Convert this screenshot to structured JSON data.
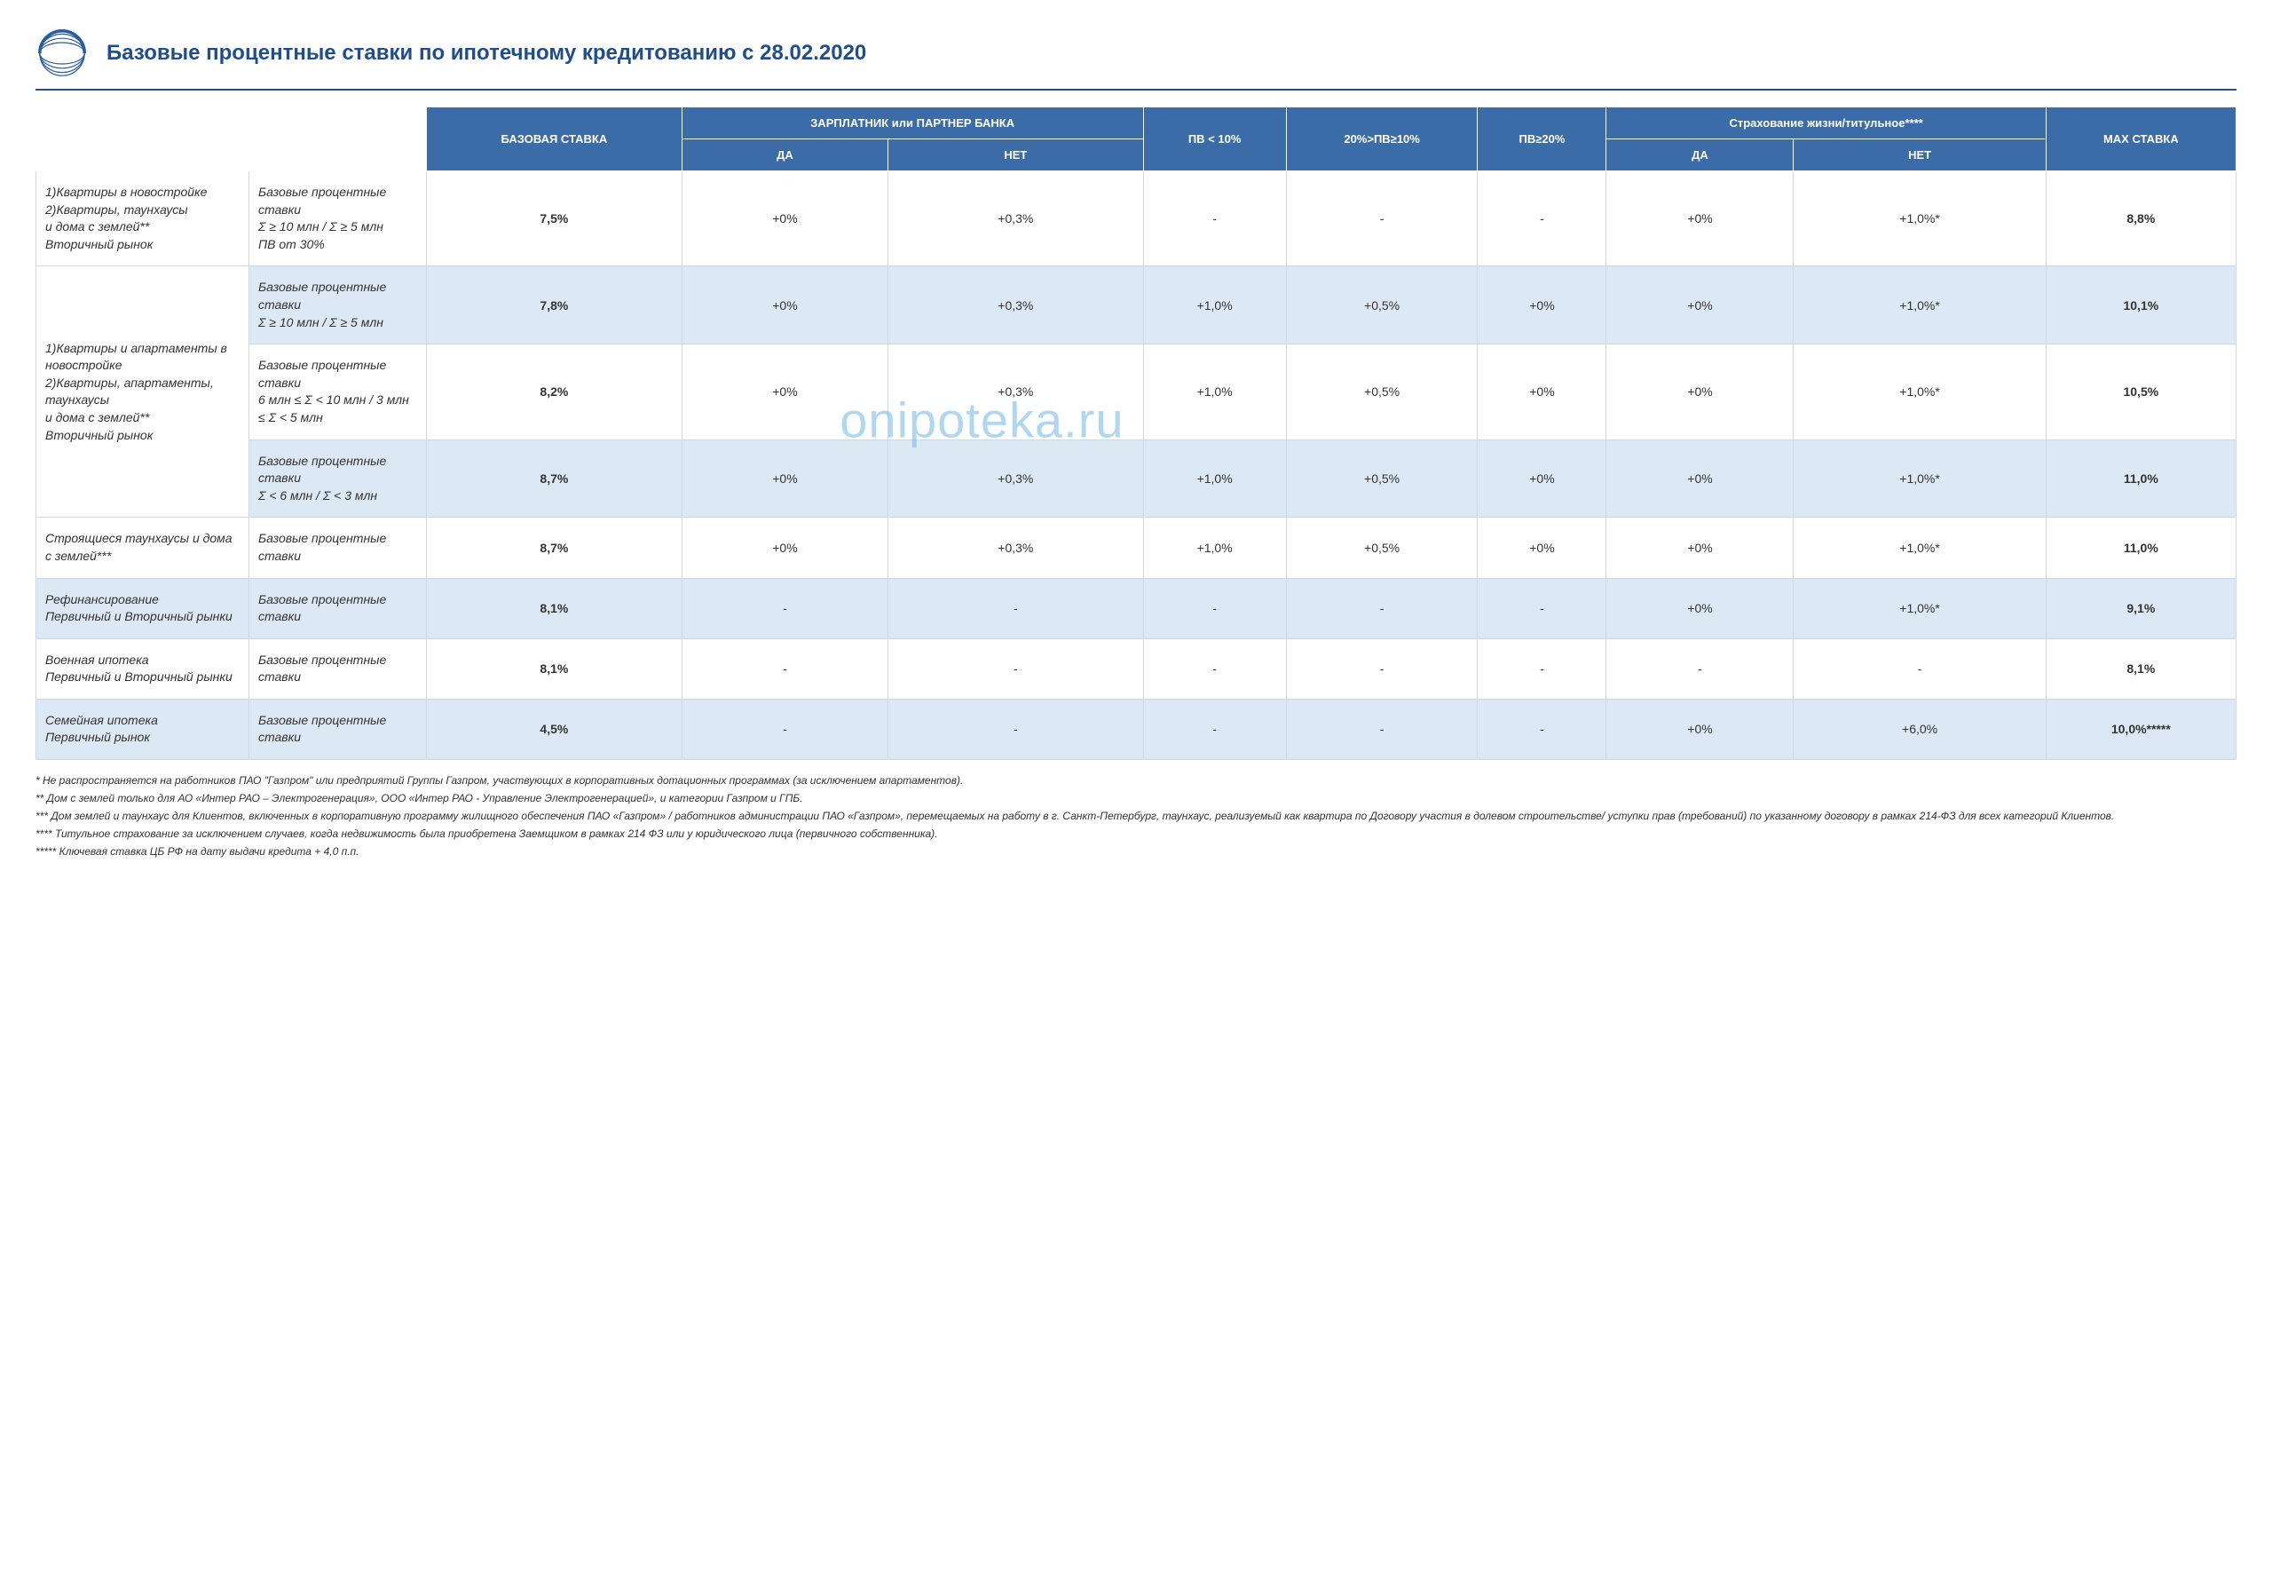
{
  "title": "Базовые процентные ставки по ипотечному кредитованию с 28.02.2020",
  "watermark": "onipoteka.ru",
  "colors": {
    "brand": "#1f4e8c",
    "header_bg": "#3b6ca8",
    "header_fg": "#ffffff",
    "row_shade": "#dce9f5",
    "row_plain": "#ffffff",
    "border": "#d0d7e2",
    "watermark": "#6fb8e8"
  },
  "headers": {
    "base": "БАЗОВАЯ СТАВКА",
    "salary": "ЗАРПЛАТНИК или ПАРТНЕР БАНКА",
    "salary_yes": "ДА",
    "salary_no": "НЕТ",
    "pv_lt10": "ПВ < 10%",
    "pv_10_20": "20%>ПВ≥10%",
    "pv_ge20": "ПВ≥20%",
    "insurance": "Страхование жизни/титульное****",
    "ins_yes": "ДА",
    "ins_no": "НЕТ",
    "max": "MAX СТАВКА"
  },
  "groups": [
    {
      "label": "1)Квартиры в новостройке\n2)Квартиры, таунхаусы\nи дома с землей**\nВторичный рынок",
      "rows": [
        {
          "desc": "Базовые процентные ставки\nΣ ≥ 10 млн / Σ ≥ 5 млн\nПВ от 30%",
          "base": "7,5%",
          "s_yes": "+0%",
          "s_no": "+0,3%",
          "pv1": "-",
          "pv2": "-",
          "pv3": "-",
          "i_yes": "+0%",
          "i_no": "+1,0%*",
          "max": "8,8%",
          "shade": false
        }
      ]
    },
    {
      "label": "1)Квартиры и апартаменты  в новостройке\n2)Квартиры, апартаменты, таунхаусы\nи дома с землей**\nВторичный рынок",
      "rows": [
        {
          "desc": "Базовые процентные ставки\nΣ ≥ 10 млн / Σ ≥ 5 млн",
          "base": "7,8%",
          "s_yes": "+0%",
          "s_no": "+0,3%",
          "pv1": "+1,0%",
          "pv2": "+0,5%",
          "pv3": "+0%",
          "i_yes": "+0%",
          "i_no": "+1,0%*",
          "max": "10,1%",
          "shade": true
        },
        {
          "desc": "Базовые процентные ставки\n6 млн ≤ Σ < 10 млн / 3 млн ≤  Σ < 5 млн",
          "base": "8,2%",
          "s_yes": "+0%",
          "s_no": "+0,3%",
          "pv1": "+1,0%",
          "pv2": "+0,5%",
          "pv3": "+0%",
          "i_yes": "+0%",
          "i_no": "+1,0%*",
          "max": "10,5%",
          "shade": false
        },
        {
          "desc": "Базовые процентные ставки\nΣ < 6 млн / Σ < 3 млн",
          "base": "8,7%",
          "s_yes": "+0%",
          "s_no": "+0,3%",
          "pv1": "+1,0%",
          "pv2": "+0,5%",
          "pv3": "+0%",
          "i_yes": "+0%",
          "i_no": "+1,0%*",
          "max": "11,0%",
          "shade": true
        }
      ]
    },
    {
      "label": "Строящиеся таунхаусы и дома с землей***",
      "rows": [
        {
          "desc": "Базовые процентные ставки",
          "base": "8,7%",
          "s_yes": "+0%",
          "s_no": "+0,3%",
          "pv1": "+1,0%",
          "pv2": "+0,5%",
          "pv3": "+0%",
          "i_yes": "+0%",
          "i_no": "+1,0%*",
          "max": "11,0%",
          "shade": false
        }
      ]
    },
    {
      "label": "Рефинансирование\nПервичный и Вторичный рынки",
      "rows": [
        {
          "desc": "Базовые процентные ставки",
          "base": "8,1%",
          "s_yes": "-",
          "s_no": "-",
          "pv1": "-",
          "pv2": "-",
          "pv3": "-",
          "i_yes": "+0%",
          "i_no": "+1,0%*",
          "max": "9,1%",
          "shade": true
        }
      ]
    },
    {
      "label": "Военная ипотека\nПервичный и Вторичный рынки",
      "rows": [
        {
          "desc": "Базовые процентные ставки",
          "base": "8,1%",
          "s_yes": "-",
          "s_no": "-",
          "pv1": "-",
          "pv2": "-",
          "pv3": "-",
          "i_yes": "-",
          "i_no": "-",
          "max": "8,1%",
          "shade": false
        }
      ]
    },
    {
      "label": "Семейная ипотека\nПервичный рынок",
      "rows": [
        {
          "desc": "Базовые процентные ставки",
          "base": "4,5%",
          "s_yes": "-",
          "s_no": "-",
          "pv1": "-",
          "pv2": "-",
          "pv3": "-",
          "i_yes": "+0%",
          "i_no": "+6,0%",
          "max": "10,0%*****",
          "shade": true
        }
      ]
    }
  ],
  "footnotes": [
    "*   Не распространяется на работников ПАО \"Газпром\" или предприятий Группы Газпром, участвующих в корпоративных дотационных программах (за исключением апартаментов).",
    "**   Дом с землей только для АО «Интер РАО – Электрогенерация», ООО «Интер РАО - Управление Электрогенерацией», и категории Газпром и ГПБ.",
    "***  Дом  землей и таунхаус для Клиентов, включенных в корпоративную программу жилищного обеспечения ПАО «Газпром» / работников администрации ПАО «Газпром», перемещаемых на работу в г. Санкт-Петербург, таунхаус, реализуемый как квартира по Договору участия в долевом строительстве/ уступки прав (требований) по указанному договору в рамках 214-ФЗ для всех категорий Клиентов.",
    "****   Титульное страхование за исключением случаев, когда недвижимость была приобретена Заемщиком в рамках 214 ФЗ или у юридического лица (первичного собственника).",
    "*****  Ключевая ставка ЦБ РФ на дату выдачи кредита + 4,0 п.п."
  ]
}
